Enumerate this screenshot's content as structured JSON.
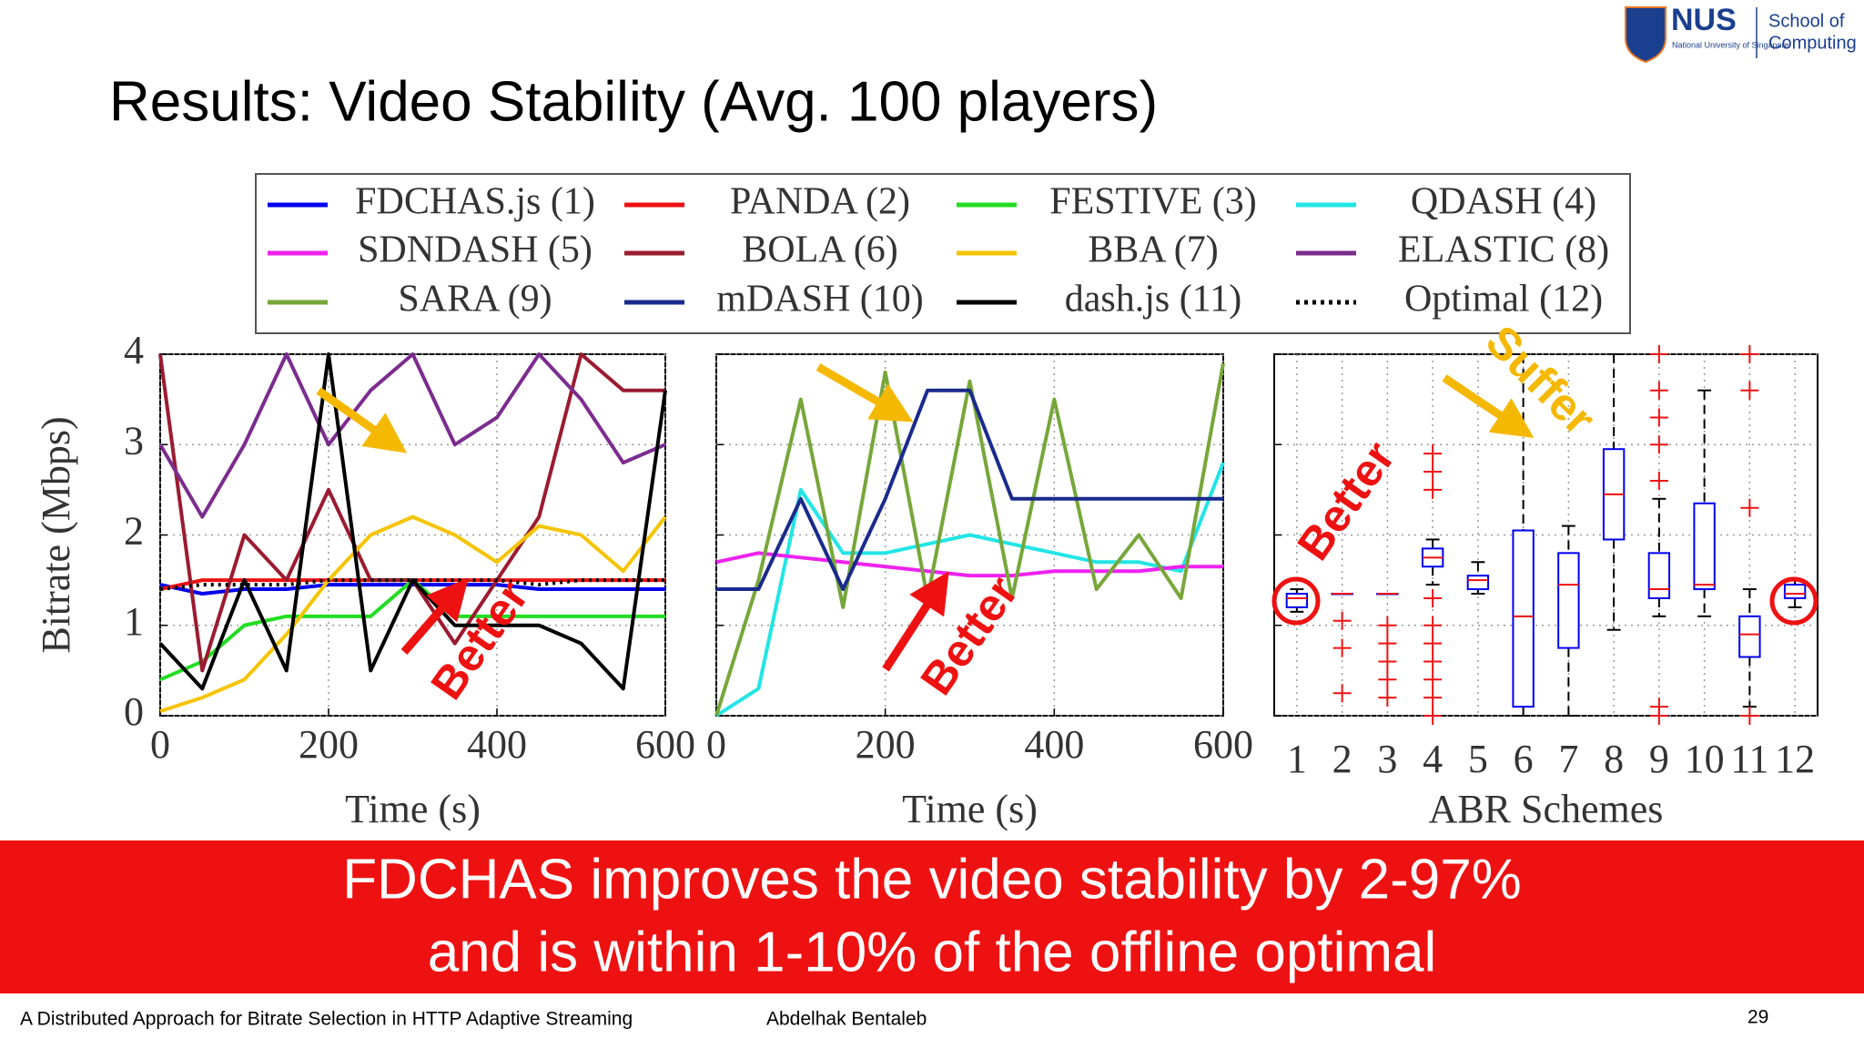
{
  "header": {
    "title": "Results: Video Stability (Avg. 100 players)",
    "logo": "NUS",
    "logo_sub": "National University of Singapore",
    "school_line1": "School of",
    "school_line2": "Computing"
  },
  "chart_data": [
    {
      "type": "line",
      "x": [
        0,
        50,
        100,
        150,
        200,
        250,
        300,
        350,
        400,
        450,
        500,
        550,
        600
      ],
      "xlim": [
        0,
        600
      ],
      "ylim": [
        0,
        4
      ],
      "xticks": [
        0,
        200,
        400,
        600
      ],
      "yticks": [
        0,
        1,
        2,
        3,
        4
      ],
      "xlabel": "Time (s)",
      "ylabel": "Bitrate (Mbps)",
      "grid": true,
      "series": [
        {
          "name": "FDCHAS.js (1)",
          "color": "#0000ee",
          "values": [
            1.45,
            1.35,
            1.4,
            1.4,
            1.45,
            1.45,
            1.45,
            1.45,
            1.45,
            1.4,
            1.4,
            1.4,
            1.4
          ]
        },
        {
          "name": "PANDA (2)",
          "color": "#ee1111",
          "values": [
            1.4,
            1.5,
            1.5,
            1.5,
            1.5,
            1.5,
            1.5,
            1.5,
            1.5,
            1.5,
            1.5,
            1.5,
            1.5
          ]
        },
        {
          "name": "FESTIVE (3)",
          "color": "#22dd22",
          "values": [
            0.4,
            0.6,
            1.0,
            1.1,
            1.1,
            1.1,
            1.5,
            1.1,
            1.1,
            1.1,
            1.1,
            1.1,
            1.1
          ]
        },
        {
          "name": "BOLA (6)",
          "color": "#9b1b30",
          "values": [
            4,
            0.5,
            2,
            1.5,
            2.5,
            1.5,
            1.5,
            0.8,
            1.5,
            2.2,
            4,
            3.6,
            3.6
          ]
        },
        {
          "name": "BBA (7)",
          "color": "#f5c400",
          "values": [
            0.05,
            0.2,
            0.4,
            0.9,
            1.5,
            2.0,
            2.2,
            2.0,
            1.7,
            2.1,
            2.0,
            1.6,
            2.2
          ]
        },
        {
          "name": "ELASTIC (8)",
          "color": "#7b2d8e",
          "values": [
            3,
            2.2,
            3,
            4,
            3,
            3.6,
            4,
            3,
            3.3,
            4,
            3.5,
            2.8,
            3
          ]
        },
        {
          "name": "dash.js (11)",
          "color": "#000000",
          "values": [
            0.8,
            0.3,
            1.5,
            0.5,
            4,
            0.5,
            1.5,
            1.0,
            1.0,
            1.0,
            0.8,
            0.3,
            3.6
          ]
        },
        {
          "name": "Optimal (12)",
          "color": "#000000",
          "dash": "dotted",
          "values": [
            1.4,
            1.45,
            1.45,
            1.45,
            1.5,
            1.5,
            1.5,
            1.5,
            1.5,
            1.45,
            1.5,
            1.5,
            1.5
          ]
        }
      ]
    },
    {
      "type": "line",
      "x": [
        0,
        50,
        100,
        150,
        200,
        250,
        300,
        350,
        400,
        450,
        500,
        550,
        600
      ],
      "xlim": [
        0,
        600
      ],
      "ylim": [
        0,
        4
      ],
      "xticks": [
        0,
        200,
        400,
        600
      ],
      "yticks": [
        0,
        1,
        2,
        3,
        4
      ],
      "xlabel": "Time (s)",
      "grid": true,
      "series": [
        {
          "name": "QDASH (4)",
          "color": "#22e5e5",
          "values": [
            0,
            0.3,
            2.5,
            1.8,
            1.8,
            1.9,
            2.0,
            1.9,
            1.8,
            1.7,
            1.7,
            1.6,
            2.8
          ]
        },
        {
          "name": "SDNDASH (5)",
          "color": "#ee22ee",
          "values": [
            1.7,
            1.8,
            1.75,
            1.7,
            1.65,
            1.6,
            1.55,
            1.55,
            1.6,
            1.6,
            1.6,
            1.65,
            1.65
          ]
        },
        {
          "name": "SARA (9)",
          "color": "#77a63a",
          "values": [
            0,
            1.5,
            3.5,
            1.2,
            3.8,
            1.3,
            3.7,
            1.3,
            3.5,
            1.4,
            2.0,
            1.3,
            3.9
          ]
        },
        {
          "name": "mDASH (10)",
          "color": "#1a2a8c",
          "values": [
            1.4,
            1.4,
            2.4,
            1.4,
            2.4,
            3.6,
            3.6,
            2.4,
            2.4,
            2.4,
            2.4,
            2.4,
            2.4
          ]
        }
      ]
    },
    {
      "type": "box",
      "categories": [
        "1",
        "2",
        "3",
        "4",
        "5",
        "6",
        "7",
        "8",
        "9",
        "10",
        "11",
        "12"
      ],
      "xlabel": "ABR Schemes",
      "ylim": [
        0,
        4
      ],
      "yticks": [
        0,
        1,
        2,
        3,
        4
      ],
      "grid": true,
      "box_color": "#0000ee",
      "median_color": "#ee1111",
      "boxes": [
        {
          "q1": 1.2,
          "median": 1.3,
          "q3": 1.35,
          "whisker_low": 1.15,
          "whisker_high": 1.4,
          "outliers": []
        },
        {
          "q1": 1.35,
          "median": 1.35,
          "q3": 1.35,
          "whisker_low": 1.35,
          "whisker_high": 1.35,
          "outliers": [
            0.25,
            0.75,
            1.05
          ]
        },
        {
          "q1": 1.35,
          "median": 1.35,
          "q3": 1.35,
          "whisker_low": 1.35,
          "whisker_high": 1.35,
          "outliers": [
            0.2,
            0.4,
            0.6,
            0.8,
            1.0
          ]
        },
        {
          "q1": 1.65,
          "median": 1.75,
          "q3": 1.85,
          "whisker_low": 1.45,
          "whisker_high": 1.95,
          "outliers": [
            0,
            0.2,
            0.4,
            0.6,
            0.8,
            1.0,
            1.3,
            2.5,
            2.7,
            2.9
          ]
        },
        {
          "q1": 1.4,
          "median": 1.5,
          "q3": 1.55,
          "whisker_low": 1.35,
          "whisker_high": 1.7,
          "outliers": []
        },
        {
          "q1": 0.1,
          "median": 1.1,
          "q3": 2.05,
          "whisker_low": 0,
          "whisker_high": 4,
          "outliers": []
        },
        {
          "q1": 0.75,
          "median": 1.45,
          "q3": 1.8,
          "whisker_low": 0,
          "whisker_high": 2.1,
          "outliers": []
        },
        {
          "q1": 1.95,
          "median": 2.45,
          "q3": 2.95,
          "whisker_low": 0.95,
          "whisker_high": 4,
          "outliers": []
        },
        {
          "q1": 1.3,
          "median": 1.4,
          "q3": 1.8,
          "whisker_low": 1.1,
          "whisker_high": 2.4,
          "outliers": [
            0,
            0.1,
            2.6,
            3.0,
            3.3,
            3.6,
            4.0
          ]
        },
        {
          "q1": 1.4,
          "median": 1.45,
          "q3": 2.35,
          "whisker_low": 1.1,
          "whisker_high": 3.6,
          "outliers": []
        },
        {
          "q1": 0.65,
          "median": 0.9,
          "q3": 1.1,
          "whisker_low": 0.1,
          "whisker_high": 1.4,
          "outliers": [
            0,
            2.3,
            3.6,
            4.0
          ]
        },
        {
          "q1": 1.3,
          "median": 1.35,
          "q3": 1.45,
          "whisker_low": 1.2,
          "whisker_high": 1.5,
          "outliers": []
        }
      ]
    }
  ],
  "annotations": [
    "Better",
    "Better",
    "Better",
    "Suffer"
  ],
  "banner": {
    "line1": "FDCHAS improves the video stability by 2-97%",
    "line2": "and is within 1-10% of the offline optimal"
  },
  "footer": {
    "talk": "A Distributed Approach for Bitrate Selection in HTTP Adaptive Streaming",
    "author": "Abdelhak Bentaleb",
    "page": "29"
  }
}
